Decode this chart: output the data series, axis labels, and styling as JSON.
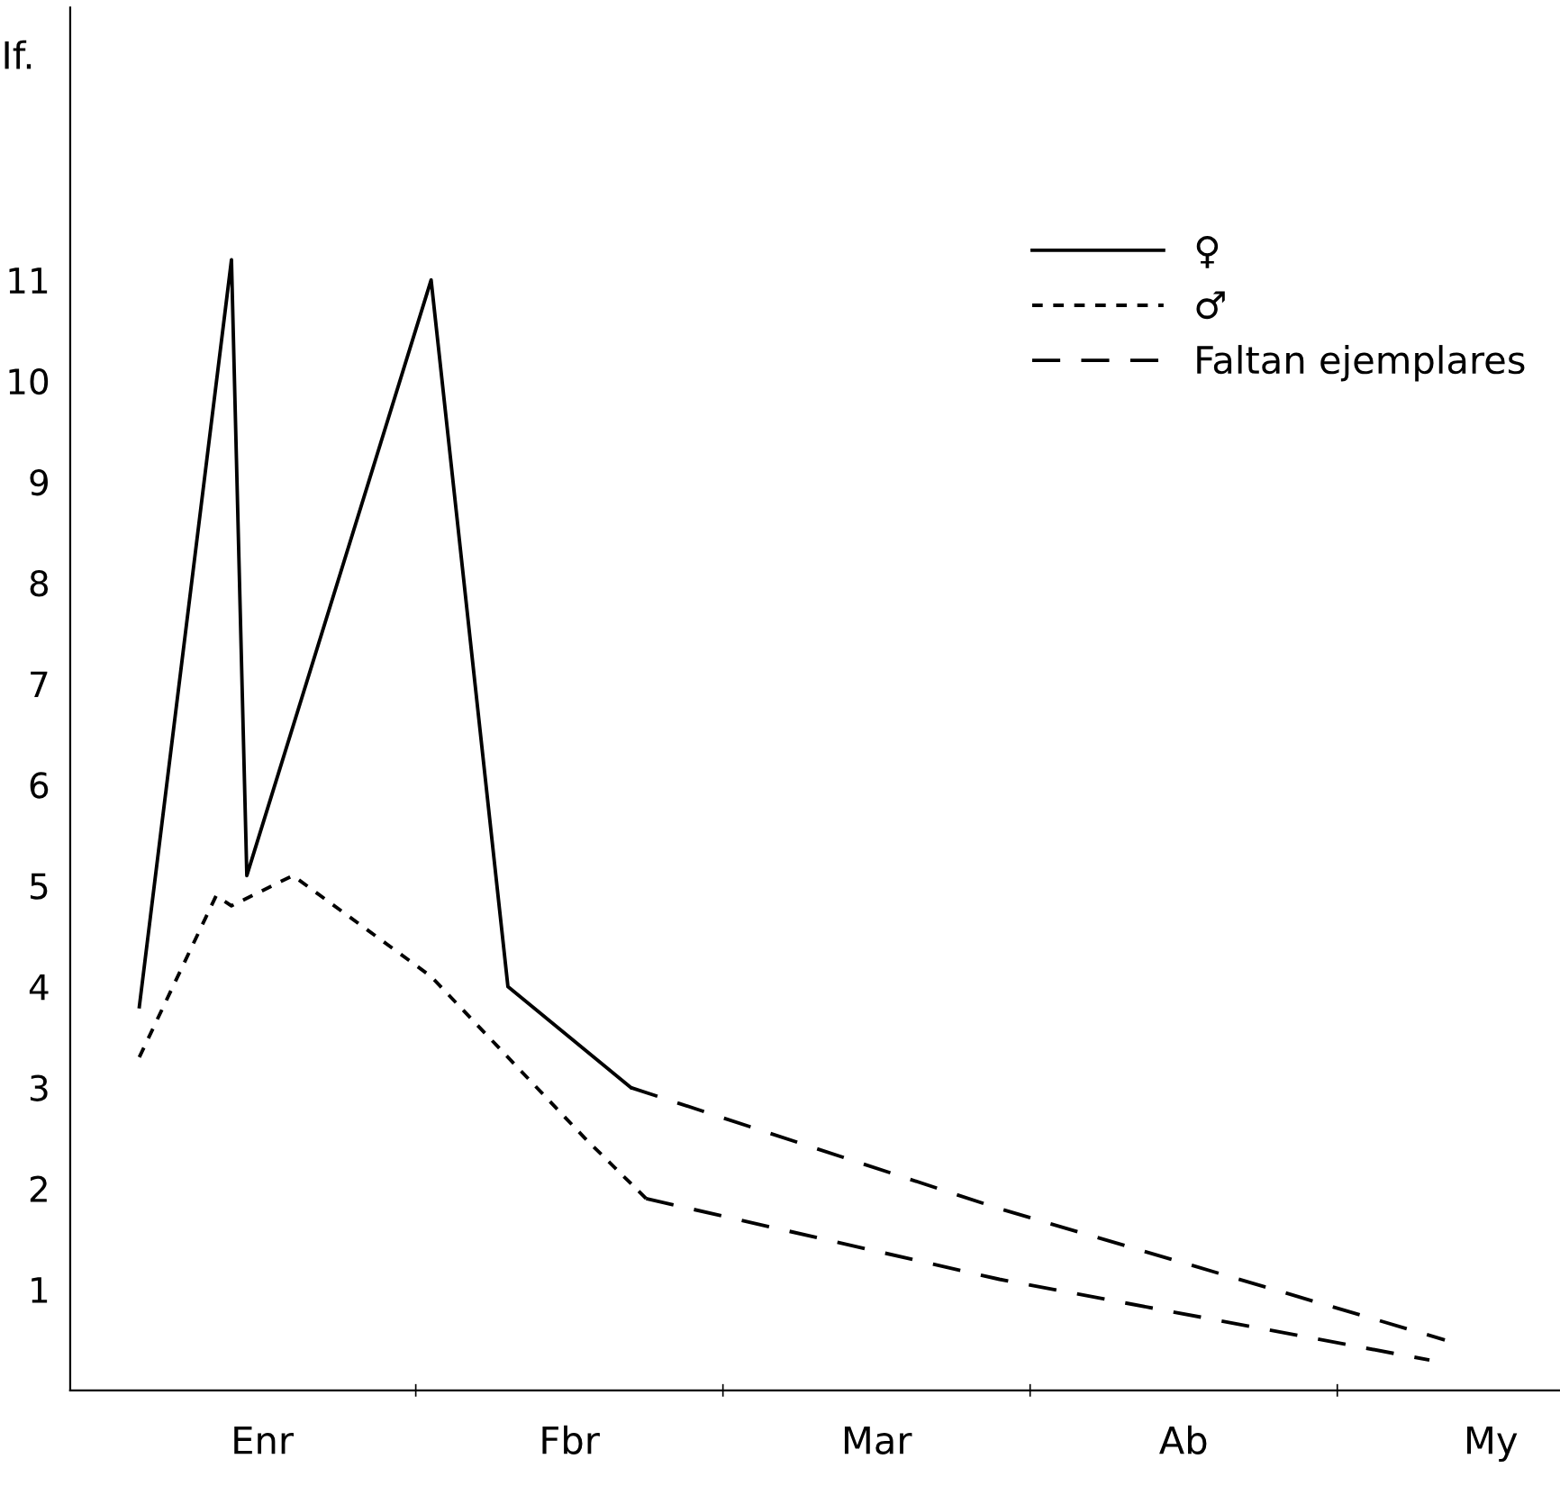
{
  "chart_data": {
    "type": "line",
    "ylabel": "If.",
    "categories": [
      null,
      null,
      null,
      null,
      null,
      null,
      null,
      null,
      null,
      null,
      "Enr",
      null,
      null,
      null,
      null,
      null,
      null,
      null,
      null,
      null,
      null,
      null,
      null,
      null,
      null,
      null,
      null,
      null,
      null,
      null,
      "Fbr",
      null,
      null,
      null,
      null,
      null,
      null,
      null,
      null,
      null,
      null,
      null,
      null,
      null,
      null,
      null,
      null,
      null,
      null,
      null,
      "Mar",
      null,
      null,
      null,
      null,
      null,
      null,
      null,
      null,
      null,
      null,
      null,
      null,
      null,
      null,
      null,
      null,
      null,
      null,
      null,
      "Ab",
      null,
      null,
      null,
      null,
      null,
      null,
      null,
      null,
      null,
      null,
      null,
      null,
      null,
      null,
      null,
      null,
      null,
      null,
      null,
      "My",
      null,
      null,
      null,
      null
    ],
    "series": [
      {
        "name": "♀",
        "color": "#000000",
        "line_style": "solid",
        "values": [
          null,
          null,
          3.8,
          null,
          null,
          null,
          null,
          null,
          11.2,
          5.1,
          null,
          null,
          null,
          null,
          null,
          null,
          null,
          null,
          null,
          null,
          null,
          11.0,
          null,
          null,
          null,
          null,
          4.0,
          null,
          null,
          null,
          null,
          null,
          null,
          null,
          3.0,
          null,
          null,
          null,
          null,
          null,
          null,
          null,
          null,
          null,
          null,
          null,
          null,
          null,
          null,
          null,
          null,
          null,
          null,
          null,
          null,
          null,
          null,
          null,
          null,
          null,
          null,
          null,
          null,
          null,
          null,
          null,
          null,
          null,
          null,
          null,
          null,
          null,
          null,
          null,
          null,
          null,
          null,
          null,
          null,
          null,
          null,
          null,
          null,
          null,
          null,
          null,
          null,
          null,
          null,
          null,
          null,
          null,
          null,
          null,
          null
        ]
      },
      {
        "name": "♂",
        "color": "#000000",
        "line_style": "dotted",
        "values": [
          null,
          null,
          3.3,
          null,
          null,
          null,
          null,
          4.9,
          4.8,
          null,
          null,
          null,
          5.1,
          null,
          null,
          null,
          null,
          null,
          null,
          null,
          null,
          4.1,
          null,
          null,
          null,
          null,
          null,
          null,
          null,
          null,
          null,
          2.5,
          null,
          null,
          null,
          1.9,
          null,
          null,
          null,
          null,
          null,
          null,
          null,
          null,
          null,
          null,
          null,
          null,
          null,
          null,
          null,
          null,
          null,
          null,
          null,
          null,
          null,
          null,
          null,
          null,
          null,
          null,
          null,
          null,
          null,
          null,
          null,
          null,
          null,
          null,
          null,
          null,
          null,
          null,
          null,
          null,
          null,
          null,
          null,
          null,
          null,
          null,
          null,
          null,
          null,
          null,
          null,
          null,
          null,
          null,
          null,
          null,
          null,
          null,
          null
        ]
      },
      {
        "name": "Faltan ejemplares",
        "color": "#000000",
        "line_style": "dashed",
        "values": [
          null,
          null,
          null,
          null,
          null,
          null,
          null,
          null,
          null,
          null,
          null,
          null,
          null,
          null,
          null,
          null,
          null,
          null,
          null,
          null,
          null,
          null,
          null,
          null,
          null,
          null,
          null,
          null,
          null,
          null,
          null,
          null,
          null,
          null,
          3.0,
          null,
          null,
          null,
          null,
          null,
          null,
          null,
          null,
          null,
          null,
          null,
          null,
          null,
          null,
          null,
          null,
          null,
          null,
          null,
          null,
          null,
          null,
          null,
          1.8,
          null,
          null,
          null,
          null,
          null,
          null,
          null,
          null,
          null,
          null,
          null,
          null,
          null,
          null,
          null,
          null,
          null,
          null,
          null,
          null,
          null,
          null,
          null,
          null,
          null,
          null,
          null,
          null,
          0.5,
          null,
          null,
          null,
          null,
          null,
          null,
          null
        ]
      },
      {
        "color": "#000000",
        "line_style": "dashed",
        "values": [
          null,
          null,
          null,
          null,
          null,
          null,
          null,
          null,
          null,
          null,
          null,
          null,
          null,
          null,
          null,
          null,
          null,
          null,
          null,
          null,
          null,
          null,
          null,
          null,
          null,
          null,
          null,
          null,
          null,
          null,
          null,
          null,
          null,
          null,
          null,
          1.9,
          null,
          null,
          null,
          null,
          null,
          null,
          null,
          null,
          null,
          null,
          null,
          null,
          null,
          null,
          null,
          null,
          null,
          null,
          null,
          null,
          null,
          null,
          1.1,
          null,
          null,
          null,
          null,
          null,
          null,
          null,
          null,
          null,
          null,
          null,
          null,
          null,
          null,
          null,
          null,
          null,
          null,
          null,
          null,
          null,
          null,
          null,
          null,
          null,
          null,
          null,
          0.3,
          null,
          null,
          null,
          null,
          null,
          null,
          null,
          null
        ]
      }
    ],
    "ylim": [
      0,
      13.7
    ],
    "yticks": [
      1,
      2,
      3,
      4,
      5,
      6,
      7,
      8,
      9,
      10,
      11
    ],
    "grid": false,
    "legend": "top right",
    "marker": "none"
  }
}
